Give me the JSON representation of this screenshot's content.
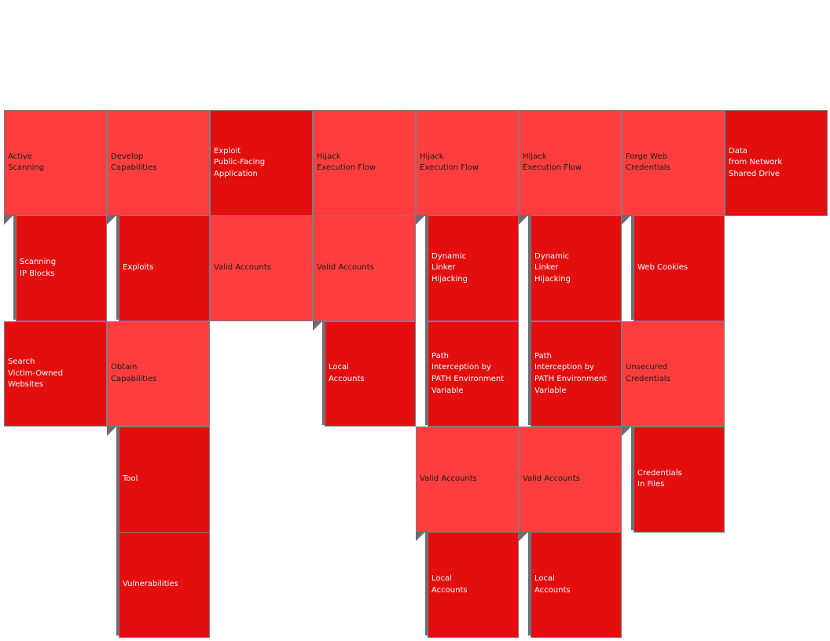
{
  "colors": {
    "light": "#fe3e3e",
    "dark": "#e30f0f",
    "connector": "#6b6b73"
  },
  "columns": [
    {
      "cells": [
        {
          "id": "active-scanning",
          "label": "Active\nScanning",
          "tone": "light"
        },
        {
          "id": "scanning-ip-blocks",
          "label": "Scanning\nIP Blocks",
          "tone": "dark",
          "sub": true
        },
        {
          "id": "search-victim-owned-websites",
          "label": "Search\nVictim-Owned\nWebsites",
          "tone": "dark"
        }
      ]
    },
    {
      "cells": [
        {
          "id": "develop-capabilities",
          "label": "Develop\nCapabilities",
          "tone": "light"
        },
        {
          "id": "exploits",
          "label": "Exploits",
          "tone": "dark",
          "sub": true
        },
        {
          "id": "obtain-capabilities",
          "label": "Obtain\nCapabilities",
          "tone": "light"
        },
        {
          "id": "tool",
          "label": "Tool",
          "tone": "dark",
          "sub": true
        },
        {
          "id": "vulnerabilities",
          "label": "Vulnerabilities",
          "tone": "dark",
          "sub": true
        }
      ]
    },
    {
      "cells": [
        {
          "id": "exploit-public-facing-application",
          "label": "Exploit\nPublic-Facing\nApplication",
          "tone": "dark"
        },
        {
          "id": "valid-accounts",
          "label": "Valid Accounts",
          "tone": "light"
        }
      ]
    },
    {
      "cells": [
        {
          "id": "hijack-execution-flow",
          "label": "Hijack\nExecution Flow",
          "tone": "light"
        },
        {
          "id": "valid-accounts",
          "label": "Valid Accounts",
          "tone": "light"
        },
        {
          "id": "local-accounts",
          "label": "Local\nAccounts",
          "tone": "dark",
          "sub": true
        }
      ]
    },
    {
      "cells": [
        {
          "id": "hijack-execution-flow",
          "label": "Hijack\nExecution Flow",
          "tone": "light"
        },
        {
          "id": "dynamic-linker-hijacking",
          "label": "Dynamic\nLinker\nHijacking",
          "tone": "dark",
          "sub": true
        },
        {
          "id": "path-interception-by-path-environment-variable",
          "label": "Path\nInterception by\nPATH Environment\nVariable",
          "tone": "dark",
          "sub": true
        },
        {
          "id": "valid-accounts",
          "label": "Valid Accounts",
          "tone": "light"
        },
        {
          "id": "local-accounts",
          "label": "Local\nAccounts",
          "tone": "dark",
          "sub": true
        }
      ]
    },
    {
      "cells": [
        {
          "id": "hijack-execution-flow",
          "label": "Hijack\nExecution Flow",
          "tone": "light"
        },
        {
          "id": "dynamic-linker-hijacking",
          "label": "Dynamic\nLinker\nHijacking",
          "tone": "dark",
          "sub": true
        },
        {
          "id": "path-interception-by-path-environment-variable",
          "label": "Path\nInterception by\nPATH Environment\nVariable",
          "tone": "dark",
          "sub": true
        },
        {
          "id": "valid-accounts",
          "label": "Valid Accounts",
          "tone": "light"
        },
        {
          "id": "local-accounts",
          "label": "Local\nAccounts",
          "tone": "dark",
          "sub": true
        }
      ]
    },
    {
      "cells": [
        {
          "id": "forge-web-credentials",
          "label": "Forge Web\nCredentials",
          "tone": "light"
        },
        {
          "id": "web-cookies",
          "label": "Web Cookies",
          "tone": "dark",
          "sub": true
        },
        {
          "id": "unsecured-credentials",
          "label": "Unsecured\nCredentials",
          "tone": "light"
        },
        {
          "id": "credentials-in-files",
          "label": "Credentials\nIn Files",
          "tone": "dark",
          "sub": true
        }
      ]
    },
    {
      "cells": [
        {
          "id": "data-from-network-shared-drive",
          "label": "Data\nfrom Network\nShared Drive",
          "tone": "dark"
        }
      ]
    }
  ]
}
